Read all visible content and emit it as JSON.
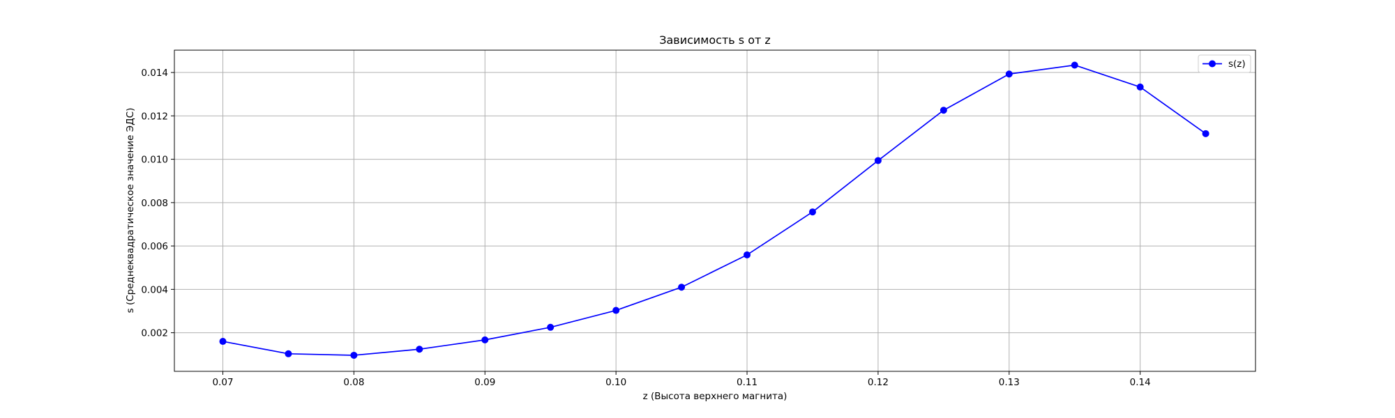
{
  "chart_data": {
    "type": "line",
    "title": "Зависимость s от z",
    "xlabel": "z (Высота верхнего магнита)",
    "ylabel": "s (Среднеквадратическое значение ЭДС)",
    "xlim": [
      0.0663,
      0.1488
    ],
    "ylim": [
      0.00022,
      0.01503
    ],
    "xticks": [
      "0.07",
      "0.08",
      "0.09",
      "0.10",
      "0.11",
      "0.12",
      "0.13",
      "0.14"
    ],
    "yticks": [
      "0.002",
      "0.004",
      "0.006",
      "0.008",
      "0.010",
      "0.012",
      "0.014"
    ],
    "grid": true,
    "legend_position": "top-right",
    "series": [
      {
        "name": "s(z)",
        "color": "#0000ff",
        "marker": "circle",
        "x": [
          0.07,
          0.075,
          0.08,
          0.085,
          0.09,
          0.095,
          0.1,
          0.105,
          0.11,
          0.115,
          0.12,
          0.125,
          0.13,
          0.135,
          0.14,
          0.145
        ],
        "y": [
          0.0016,
          0.00103,
          0.00096,
          0.00124,
          0.00167,
          0.00225,
          0.00303,
          0.0041,
          0.00559,
          0.00757,
          0.00994,
          0.01226,
          0.01393,
          0.01434,
          0.01333,
          0.01118
        ]
      }
    ]
  }
}
